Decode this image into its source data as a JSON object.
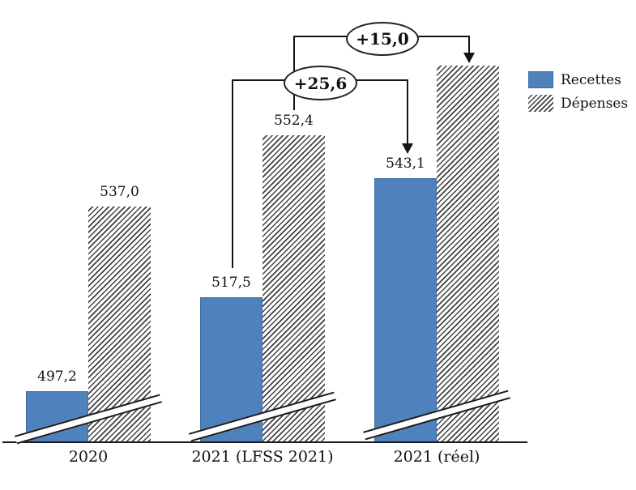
{
  "figure": {
    "background": "#ffffff",
    "text_color": "#101018"
  },
  "chart_data": {
    "type": "bar",
    "title": "",
    "categories": [
      "2020",
      "2021 (LFSS 2021)",
      "2021 (réel)"
    ],
    "series": [
      {
        "name": "Recettes",
        "style": "solid",
        "color": "#4f81bd",
        "values": [
          497.2,
          517.5,
          543.1
        ],
        "data_labels": [
          "497,2",
          "517,5",
          "543,1"
        ]
      },
      {
        "name": "Dépenses",
        "style": "diagonal-hatch",
        "color": "#404040",
        "values": [
          537.0,
          552.4,
          567.4
        ],
        "data_labels": [
          "537,0",
          "552,4",
          ""
        ]
      }
    ],
    "annotations": [
      {
        "text": "+15,0",
        "series": "Dépenses",
        "from_category": "2021 (LFSS 2021)",
        "to_category": "2021 (réel)",
        "shape": "ellipse-with-arrow"
      },
      {
        "text": "+25,6",
        "series": "Recettes",
        "from_category": "2021 (LFSS 2021)",
        "to_category": "2021 (réel)",
        "shape": "ellipse-with-arrow"
      }
    ],
    "legend": {
      "position": "right",
      "entries": [
        {
          "label": "Recettes",
          "swatch": "solid-blue"
        },
        {
          "label": "Dépenses",
          "swatch": "diagonal-hatch"
        }
      ]
    },
    "axis": {
      "x_baseline_visible": true,
      "y_axis_visible": false,
      "axis_break_marks": true
    }
  }
}
